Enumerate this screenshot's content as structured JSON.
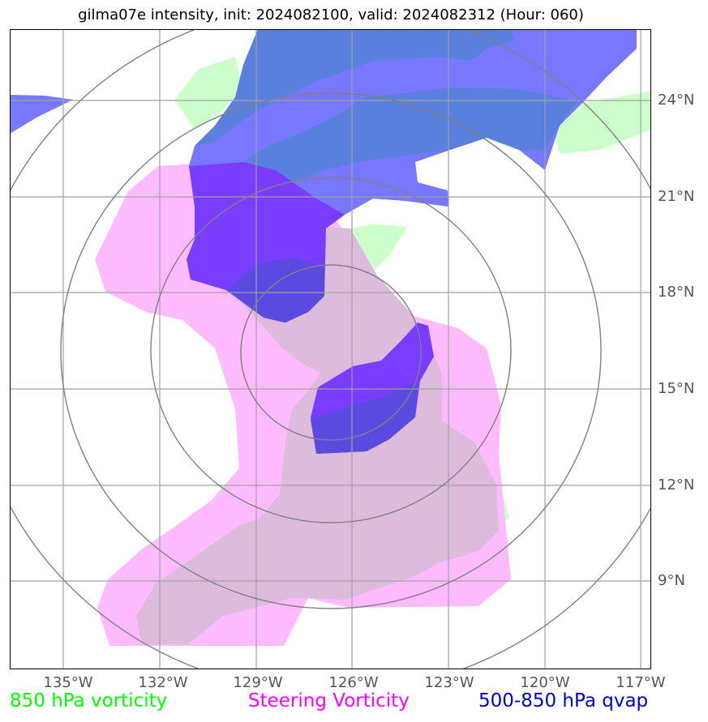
{
  "title": "gilma07e intensity, init: 2024082100, valid: 2024082312 (Hour: 060)",
  "lat_labels": [
    "24°N",
    "21°N",
    "18°N",
    "15°N",
    "12°N",
    "9°N"
  ],
  "lon_labels": [
    "135°W",
    "132°W",
    "129°W",
    "126°W",
    "123°W",
    "120°W",
    "117°W"
  ],
  "legend": [
    {
      "label": "850 hPa vorticity",
      "color": "#00ff00"
    },
    {
      "label": "Steering Vorticity",
      "color": "#ff00ff"
    },
    {
      "label": "500-850 hPa qvap",
      "color": "#0000cc"
    }
  ],
  "colors": {
    "vorticity_850": "#ccffcc",
    "steering_vorticity": "#ffbbff",
    "qvap_light": "#7777ff",
    "qvap_dark": "#5a80dd",
    "qvap_deep": "#7a3cff",
    "grid": "#999999",
    "range_rings": "#808080"
  }
}
